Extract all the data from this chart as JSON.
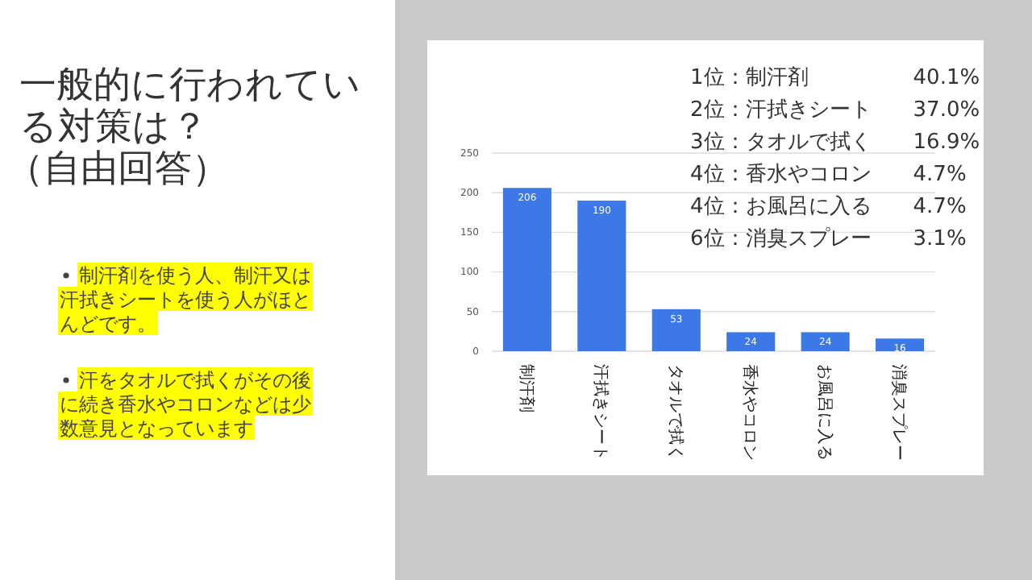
{
  "chart_data": {
    "type": "bar",
    "title": "一般的に行われている対策は？（自由回答）",
    "categories": [
      "制汗剤",
      "汗拭きシート",
      "タオルで拭く",
      "香水やコロン",
      "お風呂に入る",
      "消臭スプレー"
    ],
    "values": [
      206,
      190,
      53,
      24,
      24,
      16
    ],
    "color": "#3c78e6",
    "data_labels": true,
    "ylim": [
      0,
      250
    ],
    "yticks": [
      0,
      50,
      100,
      150,
      200,
      250
    ],
    "grid": "y",
    "annotations": [
      "制汗剤を使う人、制汗又は汗拭きシートを使う人がほとんどです。",
      "汗をタオルで拭くがその後に続き香水やコロンなどは少数意見となっています",
      "1位：制汗剤　　　　　40.1%",
      "2位：汗拭きシート　　37.0%",
      "3位：タオルで拭く　　16.9%",
      "4位：香水やコロン　　4.7%",
      "4位：お風呂に入る　　4.7%",
      "6位：消臭スプレー　　3.1%"
    ]
  }
}
